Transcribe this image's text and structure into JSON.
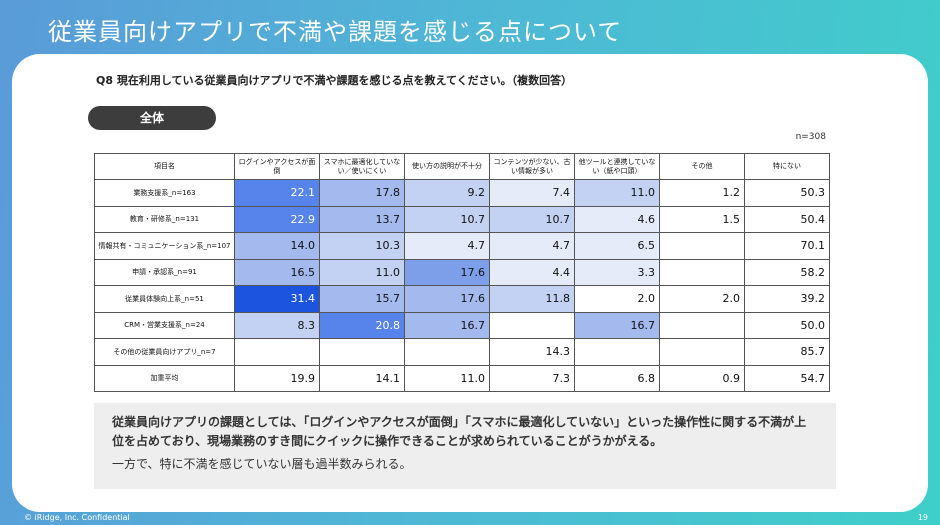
{
  "header": {
    "title": "従業員向けアプリで不満や課題を感じる点について"
  },
  "question": "Q8 現在利用している従業員向けアプリで不満や課題を感じる点を教えてください。（複数回答）",
  "segment_label": "全体",
  "sample_size": "n=308",
  "table": {
    "columns": [
      "項目名",
      "ログインやアクセスが面倒",
      "スマホに最適化していない／使いにくい",
      "使い方の説明が不十分",
      "コンテンツが少ない、古い情報が多い",
      "他ツールと連携していない（紙や口頭）",
      "その他",
      "特にない"
    ],
    "rows": [
      {
        "label": "業務支援系_n=163",
        "values": [
          "22.1",
          "17.8",
          "9.2",
          "7.4",
          "11.0",
          "1.2",
          "50.3"
        ],
        "levels": [
          5,
          3,
          2,
          1,
          2,
          0,
          0
        ]
      },
      {
        "label": "教育・研修系_n=131",
        "values": [
          "22.9",
          "13.7",
          "10.7",
          "10.7",
          "4.6",
          "1.5",
          "50.4"
        ],
        "levels": [
          5,
          3,
          2,
          2,
          1,
          0,
          0
        ]
      },
      {
        "label": "情報共有・コミュニケーション系_n=107",
        "values": [
          "14.0",
          "10.3",
          "4.7",
          "4.7",
          "6.5",
          "",
          "70.1"
        ],
        "levels": [
          3,
          2,
          1,
          1,
          1,
          0,
          0
        ]
      },
      {
        "label": "申請・承認系_n=91",
        "values": [
          "16.5",
          "11.0",
          "17.6",
          "4.4",
          "3.3",
          "",
          "58.2"
        ],
        "levels": [
          3,
          2,
          4,
          1,
          1,
          0,
          0
        ]
      },
      {
        "label": "従業員体験向上系_n=51",
        "values": [
          "31.4",
          "15.7",
          "17.6",
          "11.8",
          "2.0",
          "2.0",
          "39.2"
        ],
        "levels": [
          6,
          3,
          3,
          2,
          0,
          0,
          0
        ]
      },
      {
        "label": "CRM・営業支援系_n=24",
        "values": [
          "8.3",
          "20.8",
          "16.7",
          "",
          "16.7",
          "",
          "50.0"
        ],
        "levels": [
          2,
          5,
          3,
          0,
          3,
          0,
          0
        ]
      },
      {
        "label": "その他の従業員向けアプリ_n=7",
        "values": [
          "",
          "",
          "",
          "14.3",
          "",
          "",
          "85.7"
        ],
        "levels": [
          0,
          0,
          0,
          0,
          0,
          0,
          0
        ]
      },
      {
        "label": "加重平均",
        "values": [
          "19.9",
          "14.1",
          "11.0",
          "7.3",
          "6.8",
          "0.9",
          "54.7"
        ],
        "levels": [
          0,
          0,
          0,
          0,
          0,
          0,
          0
        ]
      }
    ]
  },
  "summary": {
    "line1": "従業員向けアプリの課題としては、「ログインやアクセスが面倒」「スマホに最適化していない」といった操作性に関する不満が上位を占めており、現場業務のすき間にクイックに操作できることが求められていることがうかがえる。",
    "line2": "一方で、特に不満を感じていない層も過半数みられる。"
  },
  "footer": {
    "copyright": "© iRidge, Inc. Confidential",
    "page_number": "19"
  },
  "colors": {
    "header_gradient_start": "#5a9bd8",
    "header_gradient_end": "#3fcfc9",
    "heat_darkest": "#1d54df",
    "heat_lightest": "#e6ebf9",
    "pill": "#3d3d3d"
  }
}
